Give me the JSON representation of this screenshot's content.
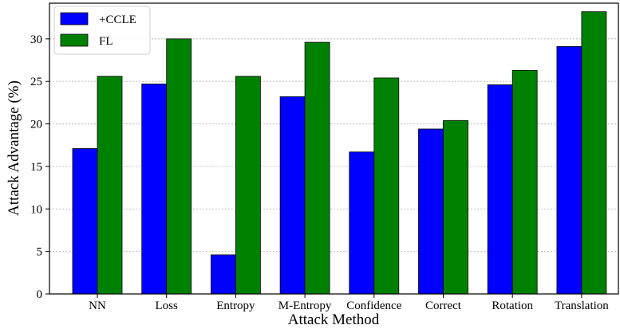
{
  "chart_data": {
    "type": "bar",
    "xlabel": "Attack Method",
    "ylabel": "Attack Advantage (%)",
    "categories": [
      "NN",
      "Loss",
      "Entropy",
      "M-Entropy",
      "Confidence",
      "Correct",
      "Rotation",
      "Translation"
    ],
    "series": [
      {
        "name": "+CCLE",
        "color": "#0000ff",
        "values": [
          17.1,
          24.7,
          4.6,
          23.2,
          16.7,
          19.4,
          24.6,
          29.1
        ]
      },
      {
        "name": "FL",
        "color": "#008000",
        "values": [
          25.6,
          30.0,
          25.6,
          29.6,
          25.4,
          20.4,
          26.3,
          33.2
        ]
      }
    ],
    "ylim": [
      0,
      34.2
    ],
    "yticks": [
      0,
      5,
      10,
      15,
      20,
      25,
      30
    ],
    "grid": "horizontal dotted",
    "legend": "top-left"
  }
}
